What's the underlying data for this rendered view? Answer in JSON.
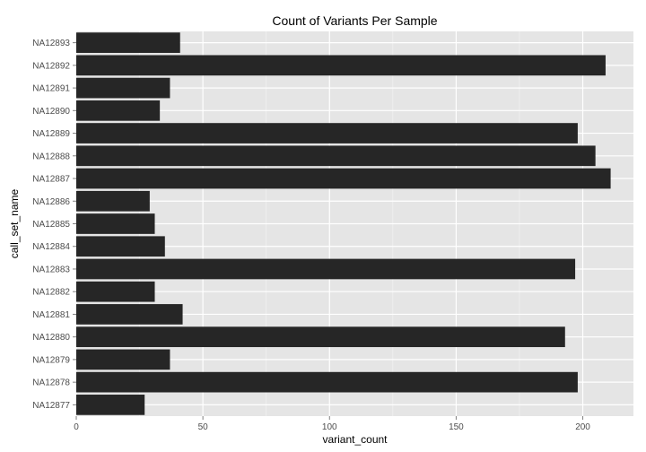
{
  "chart_data": {
    "type": "bar",
    "orientation": "horizontal",
    "title": "Count of Variants Per Sample",
    "xlabel": "variant_count",
    "ylabel": "call_set_name",
    "xlim": [
      0,
      220
    ],
    "xticks": [
      0,
      50,
      100,
      150,
      200
    ],
    "grid": true,
    "categories": [
      "NA12877",
      "NA12878",
      "NA12879",
      "NA12880",
      "NA12881",
      "NA12882",
      "NA12883",
      "NA12884",
      "NA12885",
      "NA12886",
      "NA12887",
      "NA12888",
      "NA12889",
      "NA12890",
      "NA12891",
      "NA12892",
      "NA12893"
    ],
    "values": [
      27,
      198,
      37,
      193,
      42,
      31,
      197,
      35,
      31,
      29,
      211,
      205,
      198,
      33,
      37,
      209,
      41
    ],
    "bar_color": "#262626",
    "panel_color": "#e5e5e5",
    "grid_color": "#ffffff"
  }
}
